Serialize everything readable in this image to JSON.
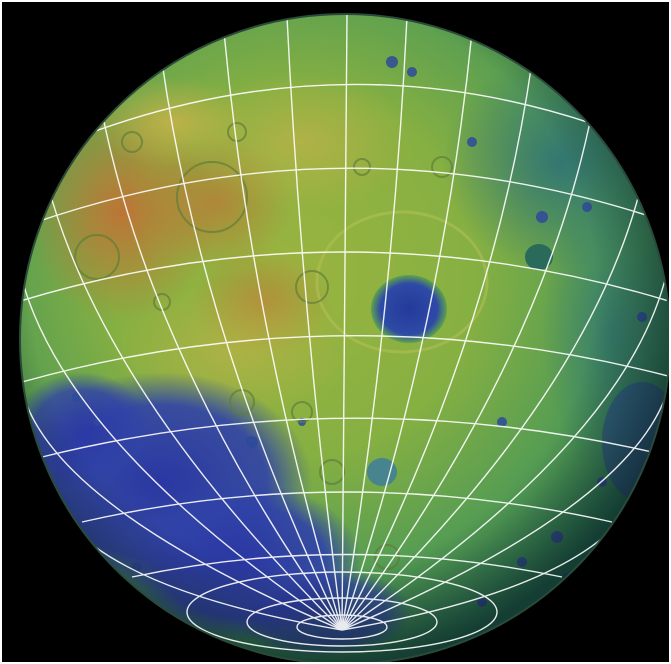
{
  "image": {
    "subject": "globe-view-topography-map",
    "colors": {
      "background": "#000000",
      "grid": "#ffffff",
      "high": "#c8542a",
      "mid_high": "#c9b04a",
      "mid": "#7fb545",
      "low": "#2e8a6a",
      "basin": "#2d3a9c",
      "deep": "#1c2a7a"
    }
  }
}
